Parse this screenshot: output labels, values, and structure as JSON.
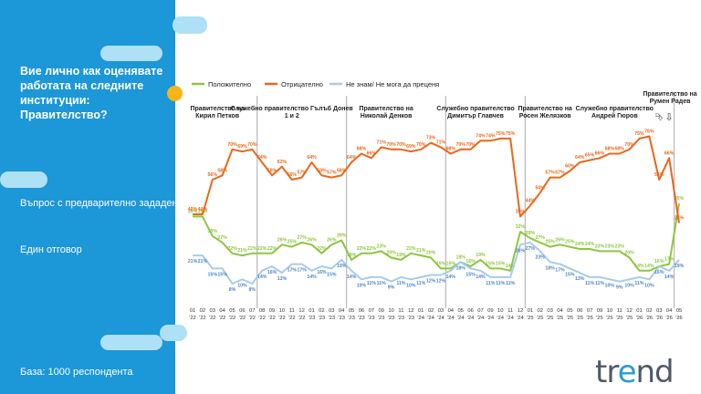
{
  "panel": {
    "question": "Вие лично как оценявате работата на следните институции: Правителство?",
    "question_type": "Въпрос с предварително зададени опции",
    "answer_mode": "Един отговор",
    "base": "База:  1000 респондента"
  },
  "brand": {
    "logo_left": "tr",
    "logo_e": "e",
    "logo_right": "nd"
  },
  "colors": {
    "positive": "#8dc63f",
    "negative": "#e8671c",
    "dontknow": "#a9cbe9",
    "panel": "#1c97d8",
    "accent_dot": "#f5b417"
  },
  "chart_data": {
    "type": "line",
    "x": [
      "01 '22",
      "02 '22",
      "03 '22",
      "04 '22",
      "05 '22",
      "06 '22",
      "07 '22",
      "08 '22",
      "09 '22",
      "10 '22",
      "11 '22",
      "12 '22",
      "01 '23",
      "02 '23",
      "03 '23",
      "04 '23",
      "05 '23",
      "06 '23",
      "07 '23",
      "09 '23",
      "10 '23",
      "11 '23",
      "12 '23",
      "01 '24",
      "02 '24",
      "03 '24",
      "04 '24",
      "05 '24",
      "06 '24",
      "07 '24",
      "09 '24",
      "10 '24",
      "11 '24",
      "12 '24",
      "01 '25",
      "02 '25",
      "03 '25",
      "04 '25",
      "05 '25",
      "06 '25",
      "07 '25",
      "09 '25",
      "10 '25",
      "11 '25",
      "12 '25",
      "01 '26",
      "02 '26",
      "03 '26",
      "04 '26",
      "05 '26"
    ],
    "x_month": [
      "01",
      "02",
      "03",
      "04",
      "05",
      "06",
      "07",
      "08",
      "09",
      "10",
      "11",
      "12",
      "01",
      "02",
      "03",
      "04",
      "05",
      "06",
      "07",
      "09",
      "10",
      "11",
      "12",
      "01",
      "02",
      "03",
      "04",
      "05",
      "06",
      "07",
      "09",
      "10",
      "11",
      "12",
      "01",
      "02",
      "03",
      "04",
      "05",
      "06",
      "07",
      "09",
      "10",
      "11",
      "12",
      "01",
      "02",
      "03",
      "04",
      "05"
    ],
    "x_year": [
      "'22",
      "'22",
      "'22",
      "'22",
      "'22",
      "'22",
      "'22",
      "'22",
      "'22",
      "'22",
      "'22",
      "'22",
      "'23",
      "'23",
      "'23",
      "'23",
      "'23",
      "'23",
      "'23",
      "'23",
      "'23",
      "'23",
      "'23",
      "'24",
      "'24",
      "'24",
      "'24",
      "'24",
      "'24",
      "'24",
      "'24",
      "'24",
      "'24",
      "'24",
      "'25",
      "'25",
      "'25",
      "'25",
      "'25",
      "'25",
      "'25",
      "'25",
      "'25",
      "'25",
      "'25",
      "'26",
      "'26",
      "'26",
      "'26",
      "'26"
    ],
    "series": [
      {
        "name": "Положително",
        "values": [
          39,
          39,
          30,
          27,
          22,
          21,
          22,
          22,
          22,
          26,
          25,
          27,
          26,
          22,
          26,
          28,
          19,
          22,
          22,
          23,
          20,
          19,
          22,
          21,
          20,
          15,
          15,
          18,
          16,
          19,
          15,
          15,
          14,
          32,
          29,
          27,
          25,
          26,
          25,
          24,
          24,
          23,
          23,
          23,
          20,
          14,
          14,
          16,
          17,
          45
        ]
      },
      {
        "name": "Отрицателно",
        "values": [
          40,
          40,
          56,
          58,
          70,
          69,
          70,
          64,
          58,
          62,
          56,
          57,
          64,
          58,
          57,
          58,
          64,
          68,
          66,
          71,
          70,
          70,
          69,
          70,
          73,
          71,
          68,
          70,
          70,
          74,
          74,
          75,
          75,
          39,
          44,
          50,
          57,
          57,
          60,
          64,
          65,
          66,
          68,
          68,
          70,
          75,
          76,
          56,
          66,
          36
        ]
      },
      {
        "name": "Не знам/ Не мога да преценя",
        "values": [
          21,
          21,
          15,
          15,
          8,
          10,
          8,
          14,
          16,
          13,
          17,
          17,
          14,
          16,
          15,
          19,
          14,
          10,
          11,
          11,
          9,
          11,
          10,
          11,
          12,
          12,
          14,
          18,
          15,
          14,
          11,
          11,
          11,
          26,
          27,
          23,
          18,
          17,
          15,
          13,
          11,
          11,
          10,
          9,
          10,
          11,
          10,
          16,
          14,
          19
        ]
      }
    ],
    "label_idx": [
      0,
      1,
      2,
      3,
      4,
      5,
      6,
      7,
      8,
      9,
      10,
      11,
      12,
      13,
      14,
      15,
      16,
      17,
      18,
      19,
      20,
      21,
      22,
      23,
      24,
      25,
      26,
      27,
      28,
      29,
      30,
      31,
      32,
      33,
      34,
      35,
      36,
      37,
      38,
      39,
      40,
      41,
      42,
      43,
      44,
      45,
      46,
      47,
      48,
      49
    ],
    "periods": [
      {
        "label": "Правителство на Кирил Петков",
        "start": 0
      },
      {
        "label": "Служебно правителство Гълъб Донев 1 и 2",
        "start": 6
      },
      {
        "label": "Правителство на Николай Денков",
        "start": 15
      },
      {
        "label": "Служебно правителство Димитър Главчев",
        "start": 25
      },
      {
        "label": "Правителство на Росен Желязков",
        "start": 33
      },
      {
        "label": "Служебно правителство Андрей Гюров",
        "start": 39
      },
      {
        "label": "Правителство на Румен Радев",
        "start": 47
      }
    ],
    "dividers_after": [
      6,
      15,
      25,
      33,
      48
    ],
    "arrows": [
      {
        "at": 47,
        "glyph": "⮷"
      },
      {
        "at": 48,
        "glyph": "⇩"
      }
    ],
    "ylim": [
      0,
      80
    ],
    "legend_position": "top-left"
  }
}
